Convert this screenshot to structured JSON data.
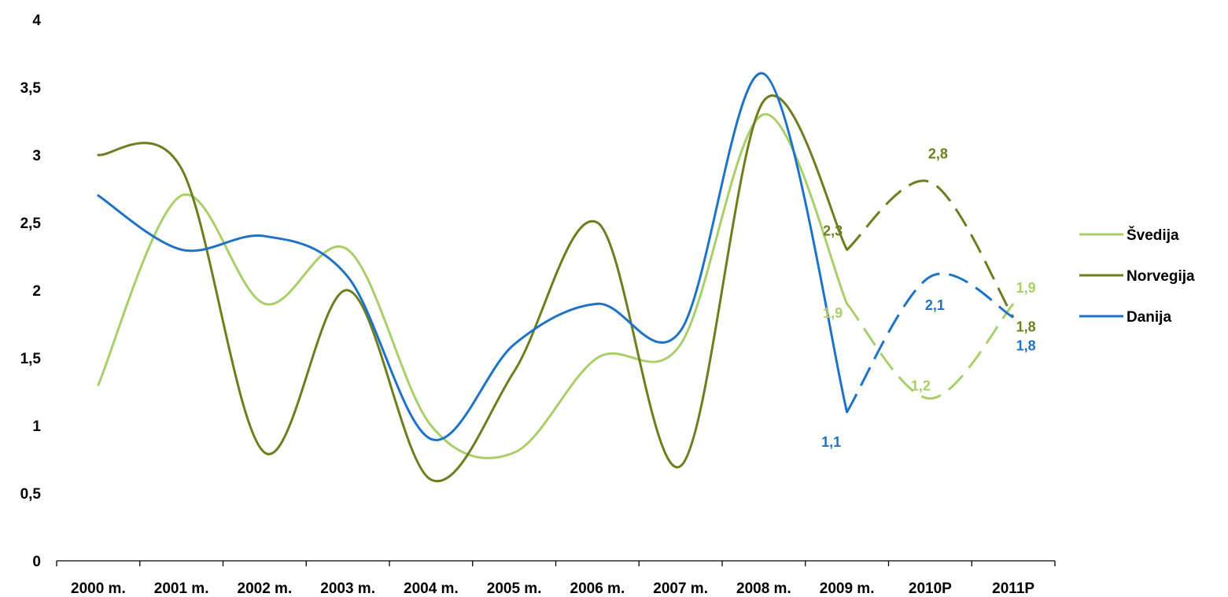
{
  "chart_data": {
    "type": "line",
    "categories": [
      "2000 m.",
      "2001 m.",
      "2002 m.",
      "2003 m.",
      "2004 m.",
      "2005 m.",
      "2006 m.",
      "2007 m.",
      "2008 m.",
      "2009 m.",
      "2010P",
      "2011P"
    ],
    "ylim": [
      0,
      4
    ],
    "yticks": [
      "0",
      "0,5",
      "1",
      "1,5",
      "2",
      "2,5",
      "3",
      "3,5",
      "4"
    ],
    "grid": false,
    "legend_position": "right",
    "forecast_from_index": 9,
    "series": [
      {
        "name": "Švedija",
        "color": "#a9cf6b",
        "values": [
          1.3,
          2.7,
          1.9,
          2.3,
          1.0,
          0.8,
          1.5,
          1.6,
          3.3,
          1.9,
          1.2,
          1.9
        ],
        "labels": [
          {
            "index": 9,
            "text": "1,9"
          },
          {
            "index": 10,
            "text": "1,2"
          },
          {
            "index": 11,
            "text": "1,9"
          }
        ]
      },
      {
        "name": "Norvegija",
        "color": "#6b7f1f",
        "values": [
          3.0,
          2.9,
          0.8,
          2.0,
          0.6,
          1.4,
          2.5,
          0.7,
          3.4,
          2.3,
          2.8,
          1.8
        ],
        "labels": [
          {
            "index": 9,
            "text": "2,3"
          },
          {
            "index": 10,
            "text": "2,8"
          },
          {
            "index": 11,
            "text": "1,8"
          }
        ]
      },
      {
        "name": "Danija",
        "color": "#1f73c4",
        "values": [
          2.7,
          2.3,
          2.4,
          2.1,
          0.9,
          1.6,
          1.9,
          1.7,
          3.6,
          1.1,
          2.1,
          1.8
        ],
        "labels": [
          {
            "index": 9,
            "text": "1,1"
          },
          {
            "index": 10,
            "text": "2,1"
          },
          {
            "index": 11,
            "text": "1,8"
          }
        ]
      }
    ]
  }
}
